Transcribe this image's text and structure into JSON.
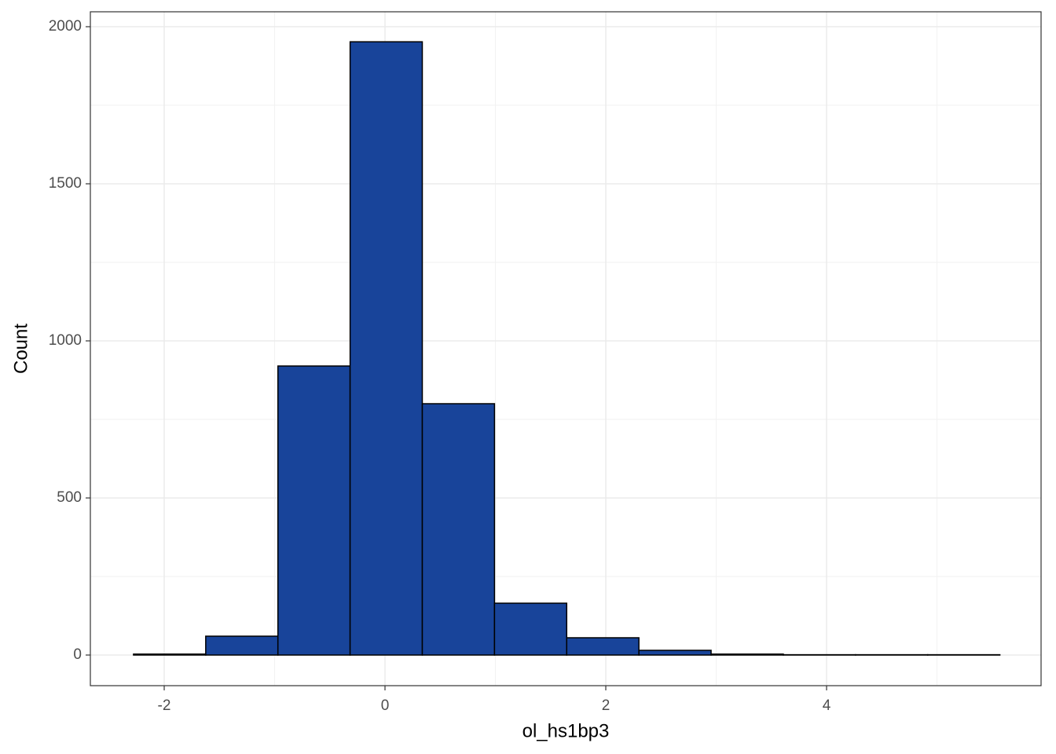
{
  "chart_data": {
    "type": "histogram",
    "x_label": "ol_hs1bp3",
    "y_label": "Count",
    "bins": [
      -2.278,
      -1.624,
      -0.97,
      -0.316,
      0.338,
      0.992,
      1.646,
      2.3,
      2.954,
      3.608,
      4.262,
      4.916,
      5.57
    ],
    "values": [
      3,
      60,
      920,
      1952,
      800,
      165,
      55,
      15,
      3,
      1,
      1,
      1
    ],
    "color": "#18449a",
    "xlim": [
      -2.669,
      5.943
    ],
    "ylim": [
      -97.5,
      2047.5
    ],
    "xticks": [
      -2,
      0,
      2,
      4
    ],
    "yticks": [
      0,
      500,
      1000,
      1500,
      2000
    ],
    "minor_xticks": [
      -1,
      1,
      3,
      5
    ],
    "minor_yticks": [
      250,
      750,
      1250,
      1750
    ],
    "grid": true
  }
}
